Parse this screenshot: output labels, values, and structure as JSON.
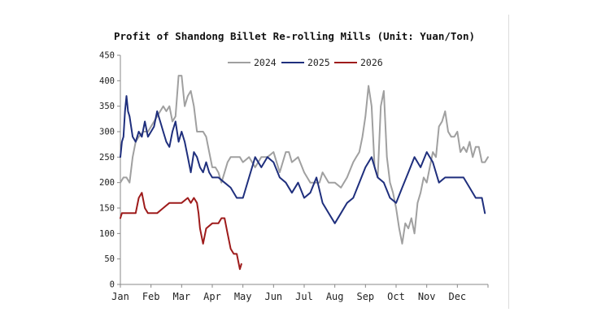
{
  "chart_data": {
    "type": "line",
    "title": "Profit of Shandong Billet Re-rolling Mills (Unit: Yuan/Ton)",
    "xlabel": "",
    "ylabel": "",
    "ylim": [
      0,
      450
    ],
    "yticks": [
      0,
      50,
      100,
      150,
      200,
      250,
      300,
      350,
      400,
      450
    ],
    "xlim": [
      0,
      12
    ],
    "x_tick_labels": [
      "Jan",
      "Feb",
      "Mar",
      "Apr",
      "May",
      "Jun",
      "Jul",
      "Aug",
      "Sep",
      "Oct",
      "Nov",
      "Dec"
    ],
    "grid": false,
    "legend_position": "top-center",
    "series": [
      {
        "name": "2024",
        "color": "#a0a0a0",
        "x": [
          0.0,
          0.1,
          0.2,
          0.3,
          0.4,
          0.5,
          0.6,
          0.75,
          0.9,
          1.0,
          1.1,
          1.2,
          1.3,
          1.4,
          1.5,
          1.6,
          1.7,
          1.8,
          1.9,
          2.0,
          2.1,
          2.2,
          2.3,
          2.4,
          2.5,
          2.6,
          2.7,
          2.8,
          2.9,
          3.0,
          3.1,
          3.2,
          3.3,
          3.4,
          3.5,
          3.6,
          3.7,
          3.8,
          3.9,
          4.0,
          4.2,
          4.4,
          4.6,
          4.8,
          5.0,
          5.2,
          5.4,
          5.5,
          5.6,
          5.8,
          6.0,
          6.2,
          6.4,
          6.5,
          6.6,
          6.8,
          7.0,
          7.2,
          7.4,
          7.6,
          7.7,
          7.8,
          7.9,
          8.0,
          8.1,
          8.2,
          8.3,
          8.4,
          8.5,
          8.6,
          8.7,
          8.8,
          8.9,
          9.0,
          9.1,
          9.2,
          9.3,
          9.4,
          9.5,
          9.6,
          9.7,
          9.8,
          9.9,
          10.0,
          10.1,
          10.2,
          10.3,
          10.4,
          10.5,
          10.6,
          10.7,
          10.8,
          10.9,
          11.0,
          11.1,
          11.2,
          11.3,
          11.4,
          11.5,
          11.6,
          11.7,
          11.8,
          11.9,
          12.0
        ],
        "values": [
          200,
          210,
          210,
          200,
          250,
          280,
          290,
          300,
          300,
          310,
          320,
          330,
          340,
          350,
          340,
          350,
          320,
          330,
          410,
          410,
          350,
          370,
          380,
          350,
          300,
          300,
          300,
          290,
          260,
          230,
          230,
          220,
          200,
          220,
          240,
          250,
          250,
          250,
          250,
          240,
          250,
          230,
          250,
          250,
          260,
          220,
          260,
          260,
          240,
          250,
          220,
          200,
          200,
          200,
          220,
          200,
          200,
          190,
          210,
          240,
          250,
          260,
          290,
          330,
          390,
          350,
          230,
          210,
          350,
          380,
          250,
          200,
          180,
          150,
          110,
          80,
          120,
          110,
          130,
          100,
          160,
          180,
          210,
          200,
          230,
          260,
          250,
          310,
          320,
          340,
          300,
          290,
          290,
          300,
          260,
          270,
          260,
          280,
          250,
          270,
          270,
          240,
          240,
          250
        ]
      },
      {
        "name": "2025",
        "color": "#1f2f7d",
        "x": [
          0.0,
          0.05,
          0.1,
          0.15,
          0.2,
          0.25,
          0.3,
          0.4,
          0.5,
          0.6,
          0.7,
          0.8,
          0.9,
          1.0,
          1.1,
          1.2,
          1.3,
          1.4,
          1.5,
          1.6,
          1.7,
          1.8,
          1.9,
          2.0,
          2.1,
          2.2,
          2.3,
          2.4,
          2.5,
          2.6,
          2.7,
          2.8,
          2.9,
          3.0,
          3.2,
          3.4,
          3.6,
          3.8,
          4.0,
          4.2,
          4.4,
          4.6,
          4.8,
          5.0,
          5.2,
          5.4,
          5.6,
          5.8,
          6.0,
          6.2,
          6.4,
          6.6,
          6.8,
          7.0,
          7.2,
          7.4,
          7.6,
          7.8,
          8.0,
          8.2,
          8.4,
          8.6,
          8.8,
          9.0,
          9.2,
          9.4,
          9.6,
          9.8,
          10.0,
          10.2,
          10.4,
          10.6,
          10.8,
          11.0,
          11.2,
          11.4,
          11.6,
          11.8,
          11.9
        ],
        "values": [
          250,
          280,
          290,
          340,
          370,
          340,
          330,
          290,
          280,
          300,
          290,
          320,
          290,
          300,
          310,
          340,
          320,
          300,
          280,
          270,
          300,
          320,
          280,
          300,
          280,
          250,
          220,
          260,
          250,
          230,
          220,
          240,
          220,
          210,
          210,
          200,
          190,
          170,
          170,
          210,
          250,
          230,
          250,
          240,
          210,
          200,
          180,
          200,
          170,
          180,
          210,
          160,
          140,
          120,
          140,
          160,
          170,
          200,
          230,
          250,
          210,
          200,
          170,
          160,
          190,
          220,
          250,
          230,
          260,
          240,
          200,
          210,
          210,
          210,
          210,
          190,
          170,
          170,
          140
        ]
      },
      {
        "name": "2026",
        "color": "#9e1b1b",
        "x": [
          0.0,
          0.05,
          0.1,
          0.3,
          0.5,
          0.6,
          0.7,
          0.8,
          0.9,
          1.0,
          1.1,
          1.2,
          1.4,
          1.6,
          1.8,
          2.0,
          2.2,
          2.3,
          2.4,
          2.5,
          2.55,
          2.6,
          2.7,
          2.8,
          3.0,
          3.2,
          3.3,
          3.4,
          3.5,
          3.6,
          3.7,
          3.75,
          3.8,
          3.85,
          3.9,
          3.95
        ],
        "values": [
          130,
          140,
          140,
          140,
          140,
          170,
          180,
          150,
          140,
          140,
          140,
          140,
          150,
          160,
          160,
          160,
          170,
          160,
          170,
          160,
          140,
          110,
          80,
          110,
          120,
          120,
          130,
          130,
          100,
          70,
          60,
          60,
          60,
          45,
          30,
          40
        ]
      }
    ]
  }
}
